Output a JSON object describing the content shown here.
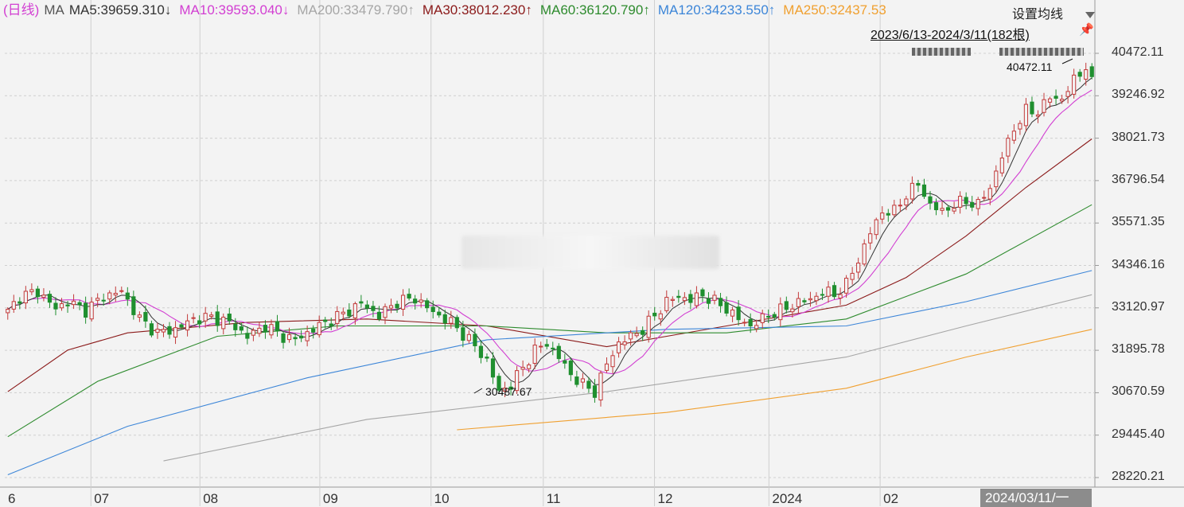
{
  "legend": {
    "period": "(日线)",
    "ma_label": "MA",
    "items": [
      {
        "text": "MA5:39659.310↓",
        "color": "#333333"
      },
      {
        "text": "MA10:39593.040↓",
        "color": "#d23fd2"
      },
      {
        "text": "MA200:33479.790↑",
        "color": "#a6a6a6"
      },
      {
        "text": "MA30:38012.230↑",
        "color": "#8b1a1a"
      },
      {
        "text": "MA60:36120.790↑",
        "color": "#2e8b2e"
      },
      {
        "text": "MA120:34233.550↑",
        "color": "#3d86d8"
      },
      {
        "text": "MA250:32437.53",
        "color": "#f0a030"
      }
    ]
  },
  "toolbar": {
    "settings_label": "设置均线",
    "dropdown_icon": "triangle-down-icon"
  },
  "range_label": "2023/6/13-2024/3/11(182根)",
  "annotations": {
    "high_value": "40472.11",
    "low_value": "30487.67"
  },
  "cursor_label": "2024/03/11/一",
  "chart_data": {
    "type": "candlestick",
    "y_axis_ticks": [
      40472.11,
      39246.92,
      38021.73,
      36796.54,
      35571.35,
      34346.16,
      33120.97,
      31895.78,
      30670.59,
      29445.4,
      28220.21
    ],
    "y_axis_labels": [
      "40472.11",
      "39246.92",
      "38021.73",
      "36796.54",
      "35571.35",
      "34346.16",
      "33120.97",
      "31895.78",
      "30670.59",
      "29445.40",
      "28220.21"
    ],
    "x_axis_labels": [
      "6",
      "07",
      "08",
      "09",
      "10",
      "11",
      "12",
      "2024",
      "02"
    ],
    "x_axis_label_pos": [
      0.0,
      0.079,
      0.179,
      0.289,
      0.391,
      0.494,
      0.596,
      0.701,
      0.803
    ],
    "y_range": [
      28220.21,
      40472.11
    ],
    "closes_anchors": [
      [
        0,
        33000
      ],
      [
        2,
        33450
      ],
      [
        5,
        33600
      ],
      [
        8,
        33100
      ],
      [
        10,
        33300
      ],
      [
        13,
        33050
      ],
      [
        16,
        33450
      ],
      [
        19,
        33600
      ],
      [
        22,
        32800
      ],
      [
        25,
        32400
      ],
      [
        28,
        32500
      ],
      [
        31,
        32800
      ],
      [
        34,
        32850
      ],
      [
        37,
        32700
      ],
      [
        40,
        32300
      ],
      [
        43,
        32600
      ],
      [
        46,
        32300
      ],
      [
        48,
        32200
      ],
      [
        50,
        32400
      ],
      [
        53,
        32700
      ],
      [
        56,
        32950
      ],
      [
        59,
        33250
      ],
      [
        62,
        32900
      ],
      [
        65,
        33300
      ],
      [
        68,
        33400
      ],
      [
        71,
        33000
      ],
      [
        74,
        32700
      ],
      [
        77,
        32200
      ],
      [
        80,
        31600
      ],
      [
        82,
        30700
      ],
      [
        84,
        30900
      ],
      [
        86,
        31400
      ],
      [
        88,
        31900
      ],
      [
        90,
        32100
      ],
      [
        92,
        31700
      ],
      [
        94,
        31200
      ],
      [
        96,
        30900
      ],
      [
        98,
        30700
      ],
      [
        100,
        31500
      ],
      [
        102,
        32100
      ],
      [
        104,
        32300
      ],
      [
        106,
        32500
      ],
      [
        108,
        32900
      ],
      [
        110,
        33300
      ],
      [
        112,
        33450
      ],
      [
        114,
        33350
      ],
      [
        116,
        33500
      ],
      [
        118,
        33300
      ],
      [
        120,
        33100
      ],
      [
        122,
        32800
      ],
      [
        124,
        32600
      ],
      [
        126,
        32800
      ],
      [
        128,
        33000
      ],
      [
        130,
        33100
      ],
      [
        132,
        33300
      ],
      [
        134,
        33350
      ],
      [
        136,
        33600
      ],
      [
        138,
        33500
      ],
      [
        140,
        33800
      ],
      [
        142,
        34500
      ],
      [
        144,
        35300
      ],
      [
        146,
        35900
      ],
      [
        148,
        35900
      ],
      [
        150,
        36400
      ],
      [
        152,
        36700
      ],
      [
        154,
        36100
      ],
      [
        156,
        35900
      ],
      [
        158,
        36100
      ],
      [
        160,
        36200
      ],
      [
        162,
        36100
      ],
      [
        164,
        36600
      ],
      [
        166,
        37500
      ],
      [
        168,
        38300
      ],
      [
        170,
        38800
      ],
      [
        172,
        38800
      ],
      [
        174,
        39200
      ],
      [
        176,
        39150
      ],
      [
        178,
        39700
      ],
      [
        180,
        40100
      ],
      [
        181,
        39600
      ]
    ],
    "ma_series": [
      {
        "name": "MA30",
        "color": "#8b1a1a",
        "points": [
          [
            0,
            30700
          ],
          [
            10,
            31900
          ],
          [
            20,
            32400
          ],
          [
            40,
            32700
          ],
          [
            60,
            32800
          ],
          [
            80,
            32600
          ],
          [
            100,
            32000
          ],
          [
            120,
            32600
          ],
          [
            140,
            33200
          ],
          [
            150,
            34000
          ],
          [
            160,
            35200
          ],
          [
            170,
            36600
          ],
          [
            181,
            38000
          ]
        ]
      },
      {
        "name": "MA60",
        "color": "#2e8b2e",
        "points": [
          [
            0,
            29400
          ],
          [
            15,
            31000
          ],
          [
            35,
            32300
          ],
          [
            55,
            32600
          ],
          [
            80,
            32600
          ],
          [
            100,
            32400
          ],
          [
            120,
            32400
          ],
          [
            140,
            32800
          ],
          [
            160,
            34100
          ],
          [
            181,
            36100
          ]
        ]
      },
      {
        "name": "MA120",
        "color": "#3d86d8",
        "points": [
          [
            0,
            28300
          ],
          [
            20,
            29700
          ],
          [
            50,
            31100
          ],
          [
            80,
            32200
          ],
          [
            110,
            32500
          ],
          [
            140,
            32600
          ],
          [
            160,
            33300
          ],
          [
            181,
            34200
          ]
        ]
      },
      {
        "name": "MA200",
        "color": "#a6a6a6",
        "points": [
          [
            26,
            28700
          ],
          [
            60,
            29900
          ],
          [
            100,
            30700
          ],
          [
            140,
            31700
          ],
          [
            160,
            32600
          ],
          [
            181,
            33500
          ]
        ]
      },
      {
        "name": "MA250",
        "color": "#f0a030",
        "points": [
          [
            75,
            29600
          ],
          [
            110,
            30100
          ],
          [
            140,
            30800
          ],
          [
            160,
            31700
          ],
          [
            181,
            32500
          ]
        ]
      }
    ]
  }
}
